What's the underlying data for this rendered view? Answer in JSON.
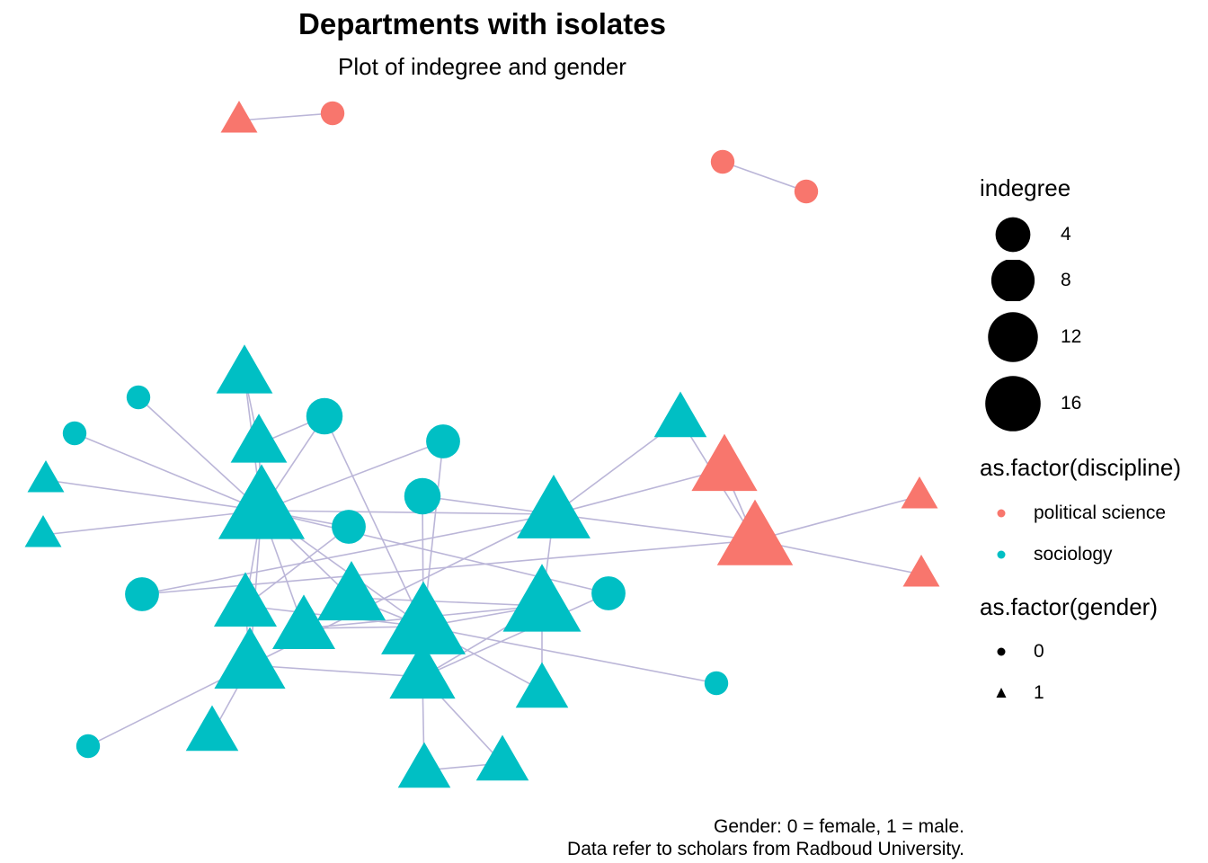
{
  "title": "Departments with isolates",
  "subtitle": "Plot of indegree and gender",
  "caption": {
    "line1": "Gender: 0 = female, 1 = male.",
    "line2": "Data refer to scholars from Radboud University."
  },
  "colors": {
    "political_science": "#F8766D",
    "sociology": "#00BFC4",
    "edge": "#BBB6D8",
    "legend_key": "#000000"
  },
  "legend": {
    "size": {
      "title": "indegree",
      "entries": [
        {
          "label": "4",
          "value": 4
        },
        {
          "label": "8",
          "value": 8
        },
        {
          "label": "12",
          "value": 12
        },
        {
          "label": "16",
          "value": 16
        }
      ]
    },
    "color": {
      "title": "as.factor(discipline)",
      "entries": [
        {
          "label": "political science",
          "color": "#F8766D"
        },
        {
          "label": "sociology",
          "color": "#00BFC4"
        }
      ]
    },
    "shape": {
      "title": "as.factor(gender)",
      "entries": [
        {
          "label": "0",
          "shape": "circle"
        },
        {
          "label": "1",
          "shape": "triangle"
        }
      ]
    }
  },
  "network": {
    "nodes": [
      {
        "id": "n1",
        "discipline": "political science",
        "gender": 1,
        "indegree": 1
      },
      {
        "id": "n2",
        "discipline": "political science",
        "gender": 0,
        "indegree": 1
      },
      {
        "id": "n3",
        "discipline": "political science",
        "gender": 0,
        "indegree": 1
      },
      {
        "id": "n4",
        "discipline": "political science",
        "gender": 0,
        "indegree": 1
      },
      {
        "id": "n5",
        "discipline": "sociology",
        "gender": 1,
        "indegree": 5
      },
      {
        "id": "n6",
        "discipline": "sociology",
        "gender": 0,
        "indegree": 1
      },
      {
        "id": "n7",
        "discipline": "sociology",
        "gender": 0,
        "indegree": 5
      },
      {
        "id": "n8",
        "discipline": "sociology",
        "gender": 0,
        "indegree": 1
      },
      {
        "id": "n9",
        "discipline": "sociology",
        "gender": 1,
        "indegree": 5
      },
      {
        "id": "n10",
        "discipline": "sociology",
        "gender": 0,
        "indegree": 4
      },
      {
        "id": "n11",
        "discipline": "sociology",
        "gender": 1,
        "indegree": 1
      },
      {
        "id": "n12",
        "discipline": "sociology",
        "gender": 0,
        "indegree": 5
      },
      {
        "id": "n13",
        "discipline": "sociology",
        "gender": 1,
        "indegree": 1
      },
      {
        "id": "n14",
        "discipline": "sociology",
        "gender": 1,
        "indegree": 17
      },
      {
        "id": "n15",
        "discipline": "sociology",
        "gender": 0,
        "indegree": 4
      },
      {
        "id": "n16",
        "discipline": "sociology",
        "gender": 1,
        "indegree": 11
      },
      {
        "id": "n17",
        "discipline": "sociology",
        "gender": 1,
        "indegree": 4
      },
      {
        "id": "n18",
        "discipline": "political science",
        "gender": 1,
        "indegree": 8
      },
      {
        "id": "n19",
        "discipline": "political science",
        "gender": 1,
        "indegree": 1
      },
      {
        "id": "n20",
        "discipline": "political science",
        "gender": 1,
        "indegree": 12
      },
      {
        "id": "n21",
        "discipline": "political science",
        "gender": 1,
        "indegree": 1
      },
      {
        "id": "n22",
        "discipline": "sociology",
        "gender": 0,
        "indegree": 4
      },
      {
        "id": "n23",
        "discipline": "sociology",
        "gender": 0,
        "indegree": 4
      },
      {
        "id": "n24",
        "discipline": "sociology",
        "gender": 1,
        "indegree": 7
      },
      {
        "id": "n25",
        "discipline": "sociology",
        "gender": 1,
        "indegree": 9
      },
      {
        "id": "n26",
        "discipline": "sociology",
        "gender": 1,
        "indegree": 7
      },
      {
        "id": "n27",
        "discipline": "sociology",
        "gender": 1,
        "indegree": 16
      },
      {
        "id": "n28",
        "discipline": "sociology",
        "gender": 1,
        "indegree": 13
      },
      {
        "id": "n29",
        "discipline": "sociology",
        "gender": 1,
        "indegree": 10
      },
      {
        "id": "n30",
        "discipline": "sociology",
        "gender": 1,
        "indegree": 8
      },
      {
        "id": "n31",
        "discipline": "sociology",
        "gender": 1,
        "indegree": 4
      },
      {
        "id": "n32",
        "discipline": "sociology",
        "gender": 0,
        "indegree": 1
      },
      {
        "id": "n33",
        "discipline": "sociology",
        "gender": 1,
        "indegree": 4
      },
      {
        "id": "n34",
        "discipline": "sociology",
        "gender": 0,
        "indegree": 1
      },
      {
        "id": "n35",
        "discipline": "sociology",
        "gender": 1,
        "indegree": 4
      },
      {
        "id": "n36",
        "discipline": "sociology",
        "gender": 1,
        "indegree": 4
      }
    ],
    "edges": [
      [
        "n1",
        "n2"
      ],
      [
        "n3",
        "n4"
      ],
      [
        "n8",
        "n14"
      ],
      [
        "n6",
        "n14"
      ],
      [
        "n11",
        "n14"
      ],
      [
        "n13",
        "n14"
      ],
      [
        "n15",
        "n14"
      ],
      [
        "n5",
        "n14"
      ],
      [
        "n9",
        "n14"
      ],
      [
        "n7",
        "n9"
      ],
      [
        "n7",
        "n14"
      ],
      [
        "n7",
        "n27"
      ],
      [
        "n14",
        "n16"
      ],
      [
        "n14",
        "n22"
      ],
      [
        "n14",
        "n27"
      ],
      [
        "n14",
        "n24"
      ],
      [
        "n14",
        "n25"
      ],
      [
        "n14",
        "n29"
      ],
      [
        "n14",
        "n26"
      ],
      [
        "n5",
        "n9"
      ],
      [
        "n10",
        "n14"
      ],
      [
        "n10",
        "n27"
      ],
      [
        "n12",
        "n16"
      ],
      [
        "n16",
        "n17"
      ],
      [
        "n16",
        "n18"
      ],
      [
        "n18",
        "n20"
      ],
      [
        "n16",
        "n20"
      ],
      [
        "n20",
        "n19"
      ],
      [
        "n20",
        "n21"
      ],
      [
        "n16",
        "n28"
      ],
      [
        "n16",
        "n23"
      ],
      [
        "n23",
        "n20"
      ],
      [
        "n16",
        "n29"
      ],
      [
        "n17",
        "n20"
      ],
      [
        "n15",
        "n24"
      ],
      [
        "n24",
        "n27"
      ],
      [
        "n25",
        "n27"
      ],
      [
        "n26",
        "n27"
      ],
      [
        "n27",
        "n28"
      ],
      [
        "n28",
        "n30"
      ],
      [
        "n28",
        "n31"
      ],
      [
        "n28",
        "n25"
      ],
      [
        "n29",
        "n30"
      ],
      [
        "n29",
        "n33"
      ],
      [
        "n29",
        "n34"
      ],
      [
        "n30",
        "n35"
      ],
      [
        "n35",
        "n36"
      ],
      [
        "n27",
        "n32"
      ],
      [
        "n27",
        "n31"
      ],
      [
        "n30",
        "n36"
      ],
      [
        "n24",
        "n29"
      ],
      [
        "n22",
        "n30"
      ],
      [
        "n26",
        "n28"
      ],
      [
        "n12",
        "n27"
      ]
    ]
  }
}
